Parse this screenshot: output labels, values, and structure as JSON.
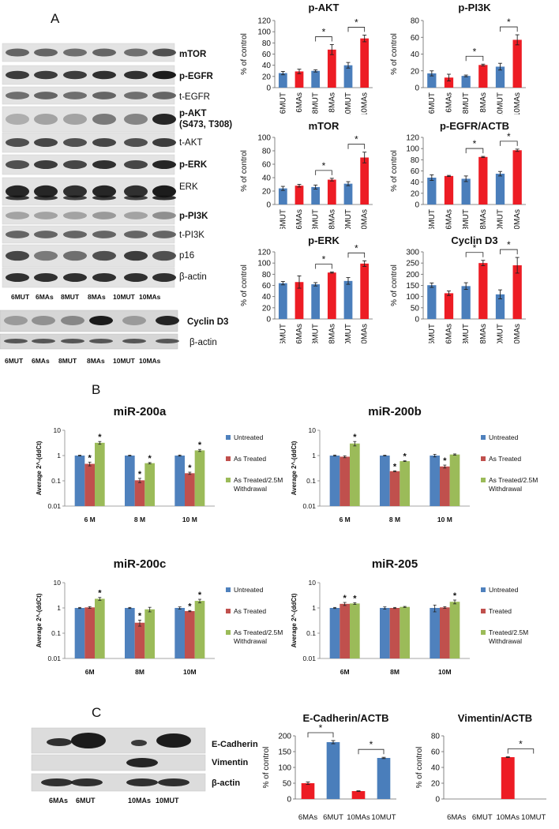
{
  "panels": {
    "a": "A",
    "b": "B",
    "c": "C"
  },
  "blot_a": {
    "rows": [
      {
        "label": "mTOR",
        "bold": true
      },
      {
        "label": "p-EGFR",
        "bold": true
      },
      {
        "label": "t-EGFR",
        "bold": false
      },
      {
        "label": "p-AKT",
        "bold": true
      },
      {
        "label": "(S473, T308)",
        "bold": true
      },
      {
        "label": "t-AKT",
        "bold": false
      },
      {
        "label": "p-ERK",
        "bold": true
      },
      {
        "label": "ERK",
        "bold": false
      },
      {
        "label": "p-PI3K",
        "bold": true
      },
      {
        "label": "t-PI3K",
        "bold": false
      },
      {
        "label": "p16",
        "bold": false
      },
      {
        "label": "β-actin",
        "bold": false
      }
    ],
    "lanes": [
      "6MUT",
      "6MAs",
      "8MUT",
      "8MAs",
      "10MUT",
      "10MAs"
    ],
    "cyclin_label": "Cyclin D3",
    "cyclin_actin_label": "β-actin"
  },
  "blot_c": {
    "rows": [
      "E-Cadherin",
      "Vimentin",
      "β-actin"
    ],
    "lanes": [
      "6MAs",
      "6MUT",
      "10MAs",
      "10MUT"
    ]
  },
  "colors": {
    "blue": "#4A7EBB",
    "red": "#ED1C24",
    "b_blue": "#4F81BD",
    "b_red": "#C0504D",
    "b_green": "#9BBB59"
  },
  "chart_data": [
    {
      "id": "a1",
      "type": "bar",
      "title": "p-AKT",
      "ylabel": "% of control",
      "ylim": [
        0,
        120
      ],
      "yticks": [
        0,
        20,
        40,
        60,
        80,
        100,
        120
      ],
      "categories": [
        "6MUT",
        "6MAs",
        "8MUT",
        "8MAs",
        "10MUT",
        "10MAs"
      ],
      "values": [
        26,
        29,
        30,
        68,
        40,
        88
      ],
      "errors": [
        3,
        4,
        2,
        9,
        5,
        6
      ],
      "annotations": [
        {
          "text": "*",
          "between": [
            2,
            3
          ]
        },
        {
          "text": "*",
          "between": [
            4,
            5
          ]
        }
      ]
    },
    {
      "id": "a2",
      "type": "bar",
      "title": "p-PI3K",
      "ylabel": "% of control",
      "ylim": [
        0,
        80
      ],
      "yticks": [
        0,
        20,
        40,
        60,
        80
      ],
      "categories": [
        "6MUT",
        "6MAs",
        "8MUT",
        "8MAs",
        "10MUT",
        "10MAs"
      ],
      "values": [
        17,
        12,
        14,
        27,
        25,
        57
      ],
      "errors": [
        3,
        4,
        1,
        1,
        4,
        6
      ],
      "annotations": [
        {
          "text": "*",
          "between": [
            2,
            3
          ]
        },
        {
          "text": "*",
          "between": [
            4,
            5
          ]
        }
      ]
    },
    {
      "id": "a3",
      "type": "bar",
      "title": "mTOR",
      "ylabel": "% of control",
      "ylim": [
        0,
        100
      ],
      "yticks": [
        0,
        20,
        40,
        60,
        80,
        100
      ],
      "categories": [
        "6MUT",
        "6MAs",
        "8MUT",
        "8MAs",
        "10MUT",
        "10MAs"
      ],
      "values": [
        24,
        28,
        26,
        37,
        31,
        70
      ],
      "errors": [
        3,
        2,
        3,
        2,
        3,
        8
      ],
      "annotations": [
        {
          "text": "*",
          "between": [
            2,
            3
          ]
        },
        {
          "text": "*",
          "between": [
            4,
            5
          ]
        }
      ]
    },
    {
      "id": "a4",
      "type": "bar",
      "title": "p-EGFR/ACTB",
      "ylabel": "% of control",
      "ylim": [
        0,
        120
      ],
      "yticks": [
        0,
        20,
        40,
        60,
        80,
        100,
        120
      ],
      "categories": [
        "6MUT",
        "6MAs",
        "8MUT",
        "8MAs",
        "10MUT",
        "10MAs"
      ],
      "values": [
        48,
        51,
        46,
        85,
        55,
        97
      ],
      "errors": [
        5,
        1,
        5,
        1,
        4,
        2
      ],
      "annotations": [
        {
          "text": "*",
          "between": [
            2,
            3
          ]
        },
        {
          "text": "*",
          "between": [
            4,
            5
          ]
        }
      ]
    },
    {
      "id": "a5",
      "type": "bar",
      "title": "p-ERK",
      "ylabel": "% of control",
      "ylim": [
        0,
        120
      ],
      "yticks": [
        0,
        20,
        40,
        60,
        80,
        100,
        120
      ],
      "categories": [
        "6MUT",
        "6MAs",
        "8MUT",
        "8MAs",
        "10MUT",
        "10MAs"
      ],
      "values": [
        64,
        66,
        62,
        83,
        68,
        99
      ],
      "errors": [
        3,
        11,
        3,
        1,
        6,
        5
      ],
      "annotations": [
        {
          "text": "*",
          "between": [
            2,
            3
          ]
        },
        {
          "text": "*",
          "between": [
            4,
            5
          ]
        }
      ]
    },
    {
      "id": "a6",
      "type": "bar",
      "title": "Cyclin D3",
      "ylabel": "% of control",
      "ylim": [
        0,
        300
      ],
      "yticks": [
        0,
        50,
        100,
        150,
        200,
        250,
        300
      ],
      "categories": [
        "6MUT",
        "6MAs",
        "8MUT",
        "8MAs",
        "10MUT",
        "10MAs"
      ],
      "values": [
        151,
        115,
        147,
        250,
        110,
        240
      ],
      "errors": [
        10,
        10,
        15,
        12,
        20,
        35
      ],
      "annotations": [
        {
          "text": "*",
          "between": [
            2,
            3
          ]
        },
        {
          "text": "*",
          "between": [
            4,
            5
          ]
        }
      ]
    },
    {
      "id": "b1",
      "type": "bar",
      "title": "miR-200a",
      "ylabel": "Average 2^-(ddCt)",
      "yscale": "log",
      "ylim": [
        0.01,
        10
      ],
      "yticks": [
        "10",
        "1",
        "0.1",
        "0.01"
      ],
      "categories": [
        "6 M",
        "8 M",
        "10 M"
      ],
      "series": [
        {
          "name": "Untreated",
          "values": [
            1,
            1,
            1
          ],
          "errors": [
            0.03,
            0.03,
            0.05
          ]
        },
        {
          "name": "As Treated",
          "values": [
            0.47,
            0.105,
            0.2
          ],
          "errors": [
            0.08,
            0.02,
            0.02
          ]
        },
        {
          "name": "As Treated/2.5M Withdrawal",
          "values": [
            3.2,
            0.5,
            1.6
          ],
          "errors": [
            0.4,
            0.03,
            0.15
          ]
        }
      ],
      "stars": [
        [
          0,
          1
        ],
        [
          0,
          2
        ],
        [
          1,
          1
        ],
        [
          1,
          2
        ],
        [
          2,
          1
        ],
        [
          2,
          2
        ]
      ]
    },
    {
      "id": "b2",
      "type": "bar",
      "title": "miR-200b",
      "ylabel": "Average 2^-(ddCt)",
      "yscale": "log",
      "ylim": [
        0.01,
        10
      ],
      "yticks": [
        "10",
        "1",
        "0.1",
        "0.01"
      ],
      "categories": [
        "6 M",
        "8 M",
        "10 M"
      ],
      "series": [
        {
          "name": "Untreated",
          "values": [
            1,
            1,
            1
          ],
          "errors": [
            0.05,
            0.03,
            0.12
          ]
        },
        {
          "name": "As Treated",
          "values": [
            0.9,
            0.24,
            0.37
          ],
          "errors": [
            0.08,
            0.01,
            0.05
          ]
        },
        {
          "name": "As Treated/2.5M Withdrawal",
          "values": [
            3,
            0.6,
            1.1
          ],
          "errors": [
            0.6,
            0.02,
            0.06
          ]
        }
      ],
      "stars": [
        [
          0,
          2
        ],
        [
          1,
          1
        ],
        [
          1,
          2
        ],
        [
          2,
          1
        ]
      ]
    },
    {
      "id": "b3",
      "type": "bar",
      "title": "miR-200c",
      "ylabel": "Average 2^-(ddCt)",
      "yscale": "log",
      "ylim": [
        0.01,
        10
      ],
      "yticks": [
        "10",
        "1",
        "0.1",
        "0.01"
      ],
      "categories": [
        "6M",
        "8M",
        "10M"
      ],
      "series": [
        {
          "name": "Untreated",
          "values": [
            1,
            1,
            1
          ],
          "errors": [
            0.05,
            0.05,
            0.1
          ]
        },
        {
          "name": "As Treated",
          "values": [
            1.05,
            0.26,
            0.75
          ],
          "errors": [
            0.08,
            0.07,
            0.04
          ]
        },
        {
          "name": "As Treated/2.5M Withdrawal",
          "values": [
            2.3,
            0.88,
            1.9
          ],
          "errors": [
            0.3,
            0.18,
            0.3
          ]
        }
      ],
      "stars": [
        [
          0,
          2
        ],
        [
          1,
          1
        ],
        [
          2,
          1
        ],
        [
          2,
          2
        ]
      ]
    },
    {
      "id": "b4",
      "type": "bar",
      "title": "miR-205",
      "ylabel": "Average 2^-(ddCt)",
      "yscale": "log",
      "ylim": [
        0.01,
        10
      ],
      "yticks": [
        "10",
        "1",
        "0.1",
        "0.01"
      ],
      "categories": [
        "6M",
        "8M",
        "10M"
      ],
      "series": [
        {
          "name": "Untreated",
          "values": [
            1,
            1,
            1
          ],
          "errors": [
            0.05,
            0.1,
            0.3
          ]
        },
        {
          "name": "Treated",
          "values": [
            1.45,
            1,
            1.05
          ],
          "errors": [
            0.2,
            0.05,
            0.08
          ]
        },
        {
          "name": "Treated/2.5M Withdrawal",
          "values": [
            1.5,
            1.1,
            1.75
          ],
          "errors": [
            0.12,
            0.05,
            0.3
          ]
        }
      ],
      "stars": [
        [
          0,
          1
        ],
        [
          0,
          2
        ],
        [
          2,
          2
        ]
      ]
    },
    {
      "id": "c1",
      "type": "bar",
      "title": "E-Cadherin/ACTB",
      "ylabel": "% of control",
      "ylim": [
        0,
        200
      ],
      "yticks": [
        0,
        50,
        100,
        150,
        200
      ],
      "categories": [
        "6MAs",
        "6MUT",
        "10MAs",
        "10MUT"
      ],
      "values": [
        50,
        180,
        25,
        130
      ],
      "errors": [
        4,
        5,
        1,
        2
      ],
      "annotations": [
        {
          "text": "*",
          "between": [
            0,
            1
          ]
        },
        {
          "text": "*",
          "between": [
            2,
            3
          ]
        }
      ]
    },
    {
      "id": "c2",
      "type": "bar",
      "title": "Vimentin/ACTB",
      "ylabel": "% of control",
      "ylim": [
        0,
        80
      ],
      "yticks": [
        0,
        20,
        40,
        60,
        80
      ],
      "categories": [
        "6MAs",
        "6MUT",
        "10MAs",
        "10MUT"
      ],
      "values": [
        0,
        0,
        53,
        0
      ],
      "errors": [
        0,
        0,
        0.5,
        0
      ],
      "annotations": [
        {
          "text": "*",
          "between": [
            2,
            3
          ]
        }
      ]
    }
  ]
}
